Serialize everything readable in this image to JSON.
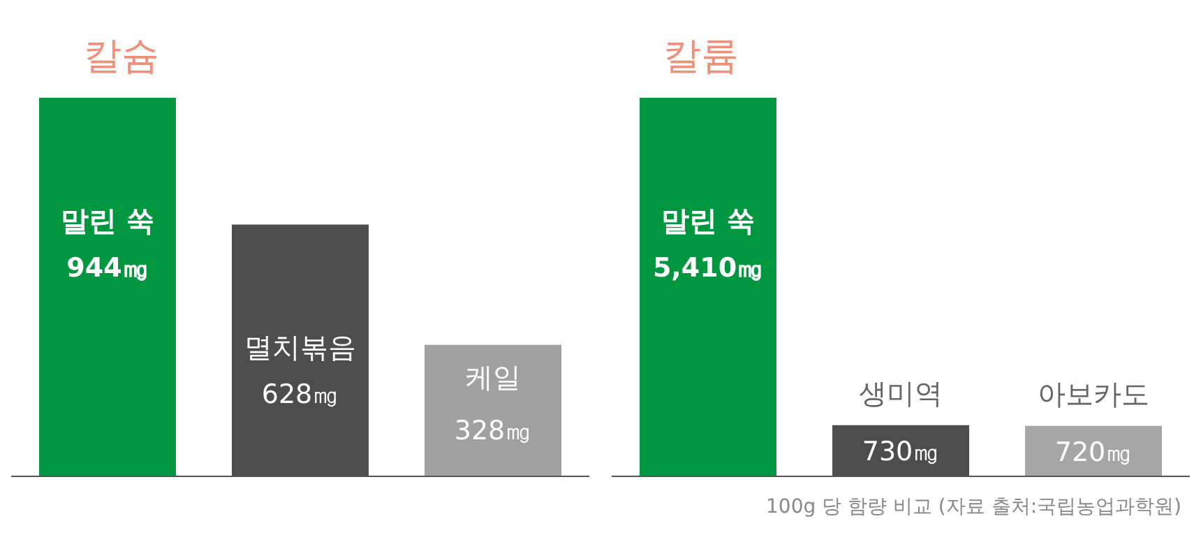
{
  "chart_data": [
    {
      "type": "bar",
      "title": "칼슘",
      "categories": [
        "말린 쑥",
        "멸치볶음",
        "케일"
      ],
      "values": [
        944,
        628,
        328
      ],
      "value_labels": [
        "944㎎",
        "628㎎",
        "328㎎"
      ],
      "colors": [
        "#00963f",
        "#4d4d4d",
        "#a0a0a0"
      ]
    },
    {
      "type": "bar",
      "title": "칼륨",
      "categories": [
        "말린 쑥",
        "생미역",
        "아보카도"
      ],
      "values": [
        5410,
        730,
        720
      ],
      "value_labels": [
        "5,410㎎",
        "730㎎",
        "720㎎"
      ],
      "colors": [
        "#00963f",
        "#4d4d4d",
        "#a6a6a6"
      ],
      "annotations": [
        "100g 당 함량 비교 (자료 출처:국립농업과학원)"
      ]
    }
  ]
}
